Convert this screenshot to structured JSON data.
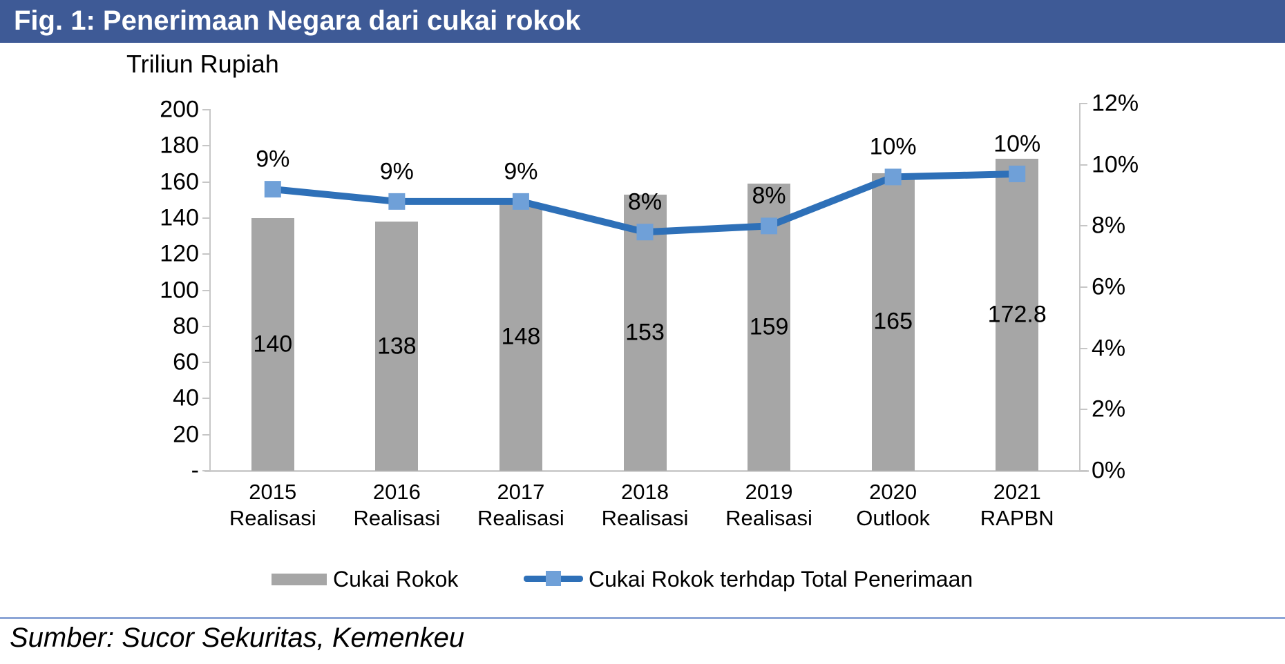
{
  "title_bar": {
    "text": "Fig. 1: Penerimaan Negara dari cukai rokok",
    "bg_color": "#3E5A96",
    "text_color": "#FFFFFF"
  },
  "chart_data": {
    "type": "bar+line",
    "axis_title": "Triliun Rupiah",
    "categories": [
      {
        "line1": "2015",
        "line2": "Realisasi"
      },
      {
        "line1": "2016",
        "line2": "Realisasi"
      },
      {
        "line1": "2017",
        "line2": "Realisasi"
      },
      {
        "line1": "2018",
        "line2": "Realisasi"
      },
      {
        "line1": "2019",
        "line2": "Realisasi"
      },
      {
        "line1": "2020",
        "line2": "Outlook"
      },
      {
        "line1": "2021",
        "line2": "RAPBN"
      }
    ],
    "series": [
      {
        "name": "Cukai Rokok",
        "type": "bar",
        "axis": "left",
        "color": "#A6A6A6",
        "values": [
          140,
          138,
          148,
          153,
          159,
          165,
          172.8
        ],
        "data_labels": [
          "140",
          "138",
          "148",
          "153",
          "159",
          "165",
          "172.8"
        ]
      },
      {
        "name": "Cukai Rokok terhdap Total Penerimaan",
        "type": "line",
        "axis": "right",
        "color": "#2E70B8",
        "marker_color": "#6FA0D8",
        "values_percent": [
          9.2,
          8.8,
          8.8,
          7.8,
          8.0,
          9.6,
          9.7
        ],
        "data_labels": [
          "9%",
          "9%",
          "9%",
          "8%",
          "8%",
          "10%",
          "10%"
        ]
      }
    ],
    "left_axis": {
      "min": 0,
      "max": 200,
      "step": 20,
      "tick_labels": [
        "-",
        "20",
        "40",
        "60",
        "80",
        "100",
        "120",
        "140",
        "160",
        "180",
        "200"
      ]
    },
    "right_axis": {
      "min": 0,
      "max": 12,
      "step": 2,
      "tick_labels": [
        "0%",
        "2%",
        "4%",
        "6%",
        "8%",
        "10%",
        "12%"
      ]
    },
    "grid": false,
    "legend_position": "bottom"
  },
  "legend": {
    "items": [
      {
        "label": "Cukai Rokok",
        "swatch": "bar",
        "color": "#A6A6A6"
      },
      {
        "label": "Cukai Rokok terhdap Total Penerimaan",
        "swatch": "line-marker",
        "color": "#2E70B8",
        "marker_color": "#6FA0D8"
      }
    ]
  },
  "source_note": {
    "text": "Sumber: Sucor Sekuritas, Kemenkeu",
    "divider_color": "#8CA5D6"
  }
}
